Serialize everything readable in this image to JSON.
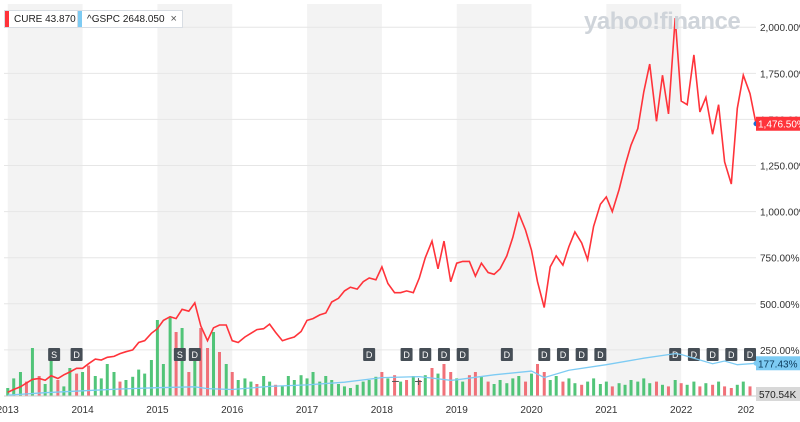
{
  "legend": {
    "cure": {
      "symbol": "CURE",
      "value": "43.870",
      "color": "#ff333a"
    },
    "gspc": {
      "symbol": "^GSPC",
      "value": "2648.050",
      "color": "#7dcbf3",
      "close": "×"
    }
  },
  "watermark": "yahoo!finance",
  "zoom": {
    "minus": "−",
    "plus": "+"
  },
  "chart_data": {
    "type": "line",
    "x_labels": [
      "2013",
      "2014",
      "2015",
      "2016",
      "2017",
      "2018",
      "2019",
      "2020",
      "2021",
      "2022",
      "202"
    ],
    "y_ticks": [
      "250.00%",
      "500.00%",
      "750.00%",
      "1,000.00%",
      "1,250.00%",
      "1,500.00%",
      "1,750.00%",
      "2,000.00%"
    ],
    "y_tick_values": [
      250,
      500,
      750,
      1000,
      1250,
      1500,
      1750,
      2000
    ],
    "ylim": [
      0,
      2050
    ],
    "xlim": [
      2012.95,
      2023.0
    ],
    "grid": true,
    "series": [
      {
        "name": "CURE",
        "color": "#ff333a",
        "last_label": "1,476.50%",
        "points": [
          [
            2013.0,
            20
          ],
          [
            2013.08,
            35
          ],
          [
            2013.17,
            50
          ],
          [
            2013.25,
            70
          ],
          [
            2013.33,
            90
          ],
          [
            2013.42,
            95
          ],
          [
            2013.5,
            85
          ],
          [
            2013.58,
            110
          ],
          [
            2013.67,
            95
          ],
          [
            2013.75,
            115
          ],
          [
            2013.83,
            130
          ],
          [
            2013.92,
            150
          ],
          [
            2014.0,
            150
          ],
          [
            2014.08,
            175
          ],
          [
            2014.17,
            200
          ],
          [
            2014.25,
            195
          ],
          [
            2014.33,
            210
          ],
          [
            2014.42,
            215
          ],
          [
            2014.5,
            230
          ],
          [
            2014.58,
            240
          ],
          [
            2014.67,
            250
          ],
          [
            2014.75,
            290
          ],
          [
            2014.83,
            300
          ],
          [
            2014.92,
            340
          ],
          [
            2015.0,
            365
          ],
          [
            2015.08,
            410
          ],
          [
            2015.17,
            430
          ],
          [
            2015.25,
            420
          ],
          [
            2015.33,
            470
          ],
          [
            2015.42,
            460
          ],
          [
            2015.5,
            505
          ],
          [
            2015.58,
            380
          ],
          [
            2015.67,
            300
          ],
          [
            2015.75,
            370
          ],
          [
            2015.83,
            385
          ],
          [
            2015.92,
            385
          ],
          [
            2016.0,
            300
          ],
          [
            2016.08,
            290
          ],
          [
            2016.17,
            320
          ],
          [
            2016.25,
            340
          ],
          [
            2016.33,
            360
          ],
          [
            2016.42,
            365
          ],
          [
            2016.5,
            390
          ],
          [
            2016.58,
            345
          ],
          [
            2016.67,
            300
          ],
          [
            2016.75,
            310
          ],
          [
            2016.83,
            320
          ],
          [
            2016.92,
            350
          ],
          [
            2017.0,
            410
          ],
          [
            2017.08,
            420
          ],
          [
            2017.17,
            440
          ],
          [
            2017.25,
            450
          ],
          [
            2017.33,
            510
          ],
          [
            2017.42,
            530
          ],
          [
            2017.5,
            570
          ],
          [
            2017.58,
            590
          ],
          [
            2017.67,
            580
          ],
          [
            2017.75,
            620
          ],
          [
            2017.83,
            640
          ],
          [
            2017.92,
            630
          ],
          [
            2018.0,
            700
          ],
          [
            2018.08,
            610
          ],
          [
            2018.17,
            560
          ],
          [
            2018.25,
            560
          ],
          [
            2018.33,
            570
          ],
          [
            2018.42,
            560
          ],
          [
            2018.5,
            640
          ],
          [
            2018.58,
            750
          ],
          [
            2018.67,
            840
          ],
          [
            2018.75,
            690
          ],
          [
            2018.83,
            840
          ],
          [
            2018.92,
            620
          ],
          [
            2019.0,
            720
          ],
          [
            2019.08,
            730
          ],
          [
            2019.17,
            730
          ],
          [
            2019.25,
            650
          ],
          [
            2019.33,
            720
          ],
          [
            2019.42,
            670
          ],
          [
            2019.5,
            660
          ],
          [
            2019.58,
            690
          ],
          [
            2019.67,
            760
          ],
          [
            2019.75,
            860
          ],
          [
            2019.83,
            990
          ],
          [
            2019.92,
            900
          ],
          [
            2020.0,
            790
          ],
          [
            2020.08,
            620
          ],
          [
            2020.17,
            480
          ],
          [
            2020.25,
            700
          ],
          [
            2020.33,
            760
          ],
          [
            2020.42,
            710
          ],
          [
            2020.5,
            810
          ],
          [
            2020.58,
            890
          ],
          [
            2020.67,
            830
          ],
          [
            2020.75,
            740
          ],
          [
            2020.83,
            920
          ],
          [
            2020.92,
            1040
          ],
          [
            2021.0,
            1080
          ],
          [
            2021.08,
            1000
          ],
          [
            2021.17,
            1120
          ],
          [
            2021.25,
            1250
          ],
          [
            2021.33,
            1360
          ],
          [
            2021.42,
            1450
          ],
          [
            2021.5,
            1650
          ],
          [
            2021.58,
            1800
          ],
          [
            2021.67,
            1490
          ],
          [
            2021.75,
            1740
          ],
          [
            2021.83,
            1530
          ],
          [
            2021.92,
            2050
          ],
          [
            2022.0,
            1600
          ],
          [
            2022.08,
            1580
          ],
          [
            2022.17,
            1850
          ],
          [
            2022.25,
            1540
          ],
          [
            2022.33,
            1620
          ],
          [
            2022.42,
            1420
          ],
          [
            2022.5,
            1580
          ],
          [
            2022.58,
            1270
          ],
          [
            2022.67,
            1150
          ],
          [
            2022.75,
            1560
          ],
          [
            2022.83,
            1740
          ],
          [
            2022.92,
            1640
          ],
          [
            2023.0,
            1476.5
          ]
        ]
      },
      {
        "name": "^GSPC",
        "color": "#7dcbf3",
        "last_label": "177.43%",
        "points": [
          [
            2013.0,
            5
          ],
          [
            2013.5,
            18
          ],
          [
            2014.0,
            28
          ],
          [
            2014.5,
            38
          ],
          [
            2015.0,
            45
          ],
          [
            2015.5,
            50
          ],
          [
            2015.67,
            40
          ],
          [
            2016.0,
            35
          ],
          [
            2016.5,
            52
          ],
          [
            2017.0,
            60
          ],
          [
            2017.5,
            75
          ],
          [
            2018.0,
            100
          ],
          [
            2018.5,
            105
          ],
          [
            2018.92,
            85
          ],
          [
            2019.0,
            88
          ],
          [
            2019.5,
            115
          ],
          [
            2020.0,
            135
          ],
          [
            2020.17,
            100
          ],
          [
            2020.5,
            140
          ],
          [
            2021.0,
            170
          ],
          [
            2021.5,
            205
          ],
          [
            2021.92,
            230
          ],
          [
            2022.0,
            225
          ],
          [
            2022.42,
            175
          ],
          [
            2022.58,
            190
          ],
          [
            2022.75,
            170
          ],
          [
            2023.0,
            177.43
          ]
        ]
      }
    ],
    "volume": {
      "last_label": "570.54K",
      "max": 100,
      "bars": [
        [
          2013.0,
          10,
          1
        ],
        [
          2013.08,
          22,
          1
        ],
        [
          2013.17,
          30,
          1
        ],
        [
          2013.25,
          18,
          0
        ],
        [
          2013.33,
          60,
          1
        ],
        [
          2013.42,
          25,
          0
        ],
        [
          2013.5,
          15,
          1
        ],
        [
          2013.58,
          45,
          1
        ],
        [
          2013.67,
          20,
          0
        ],
        [
          2013.75,
          12,
          1
        ],
        [
          2013.83,
          35,
          1
        ],
        [
          2013.92,
          28,
          0
        ],
        [
          2014.0,
          30,
          1
        ],
        [
          2014.08,
          38,
          0
        ],
        [
          2014.17,
          25,
          1
        ],
        [
          2014.25,
          22,
          1
        ],
        [
          2014.33,
          40,
          1
        ],
        [
          2014.42,
          30,
          1
        ],
        [
          2014.5,
          18,
          0
        ],
        [
          2014.58,
          20,
          1
        ],
        [
          2014.67,
          24,
          1
        ],
        [
          2014.75,
          33,
          1
        ],
        [
          2014.83,
          28,
          1
        ],
        [
          2014.92,
          45,
          1
        ],
        [
          2015.0,
          95,
          1
        ],
        [
          2015.08,
          40,
          1
        ],
        [
          2015.17,
          98,
          1
        ],
        [
          2015.25,
          80,
          0
        ],
        [
          2015.33,
          85,
          1
        ],
        [
          2015.42,
          30,
          0
        ],
        [
          2015.5,
          50,
          1
        ],
        [
          2015.58,
          85,
          0
        ],
        [
          2015.67,
          60,
          0
        ],
        [
          2015.75,
          80,
          1
        ],
        [
          2015.83,
          55,
          0
        ],
        [
          2015.92,
          40,
          1
        ],
        [
          2016.0,
          30,
          0
        ],
        [
          2016.08,
          20,
          1
        ],
        [
          2016.17,
          22,
          1
        ],
        [
          2016.25,
          18,
          1
        ],
        [
          2016.33,
          15,
          0
        ],
        [
          2016.42,
          25,
          1
        ],
        [
          2016.5,
          18,
          1
        ],
        [
          2016.58,
          14,
          0
        ],
        [
          2016.67,
          12,
          1
        ],
        [
          2016.75,
          25,
          1
        ],
        [
          2016.83,
          20,
          1
        ],
        [
          2016.92,
          26,
          1
        ],
        [
          2017.0,
          22,
          1
        ],
        [
          2017.08,
          30,
          1
        ],
        [
          2017.17,
          18,
          1
        ],
        [
          2017.25,
          25,
          1
        ],
        [
          2017.33,
          20,
          1
        ],
        [
          2017.42,
          15,
          1
        ],
        [
          2017.5,
          12,
          1
        ],
        [
          2017.58,
          10,
          1
        ],
        [
          2017.67,
          14,
          1
        ],
        [
          2017.75,
          18,
          1
        ],
        [
          2017.83,
          20,
          1
        ],
        [
          2017.92,
          24,
          1
        ],
        [
          2018.0,
          30,
          0
        ],
        [
          2018.08,
          22,
          1
        ],
        [
          2018.17,
          26,
          0
        ],
        [
          2018.25,
          18,
          1
        ],
        [
          2018.33,
          20,
          0
        ],
        [
          2018.42,
          25,
          1
        ],
        [
          2018.5,
          20,
          0
        ],
        [
          2018.58,
          26,
          1
        ],
        [
          2018.67,
          35,
          0
        ],
        [
          2018.75,
          28,
          1
        ],
        [
          2018.83,
          40,
          0
        ],
        [
          2018.92,
          30,
          0
        ],
        [
          2019.0,
          22,
          1
        ],
        [
          2019.08,
          18,
          1
        ],
        [
          2019.17,
          26,
          0
        ],
        [
          2019.25,
          30,
          0
        ],
        [
          2019.33,
          24,
          1
        ],
        [
          2019.42,
          18,
          0
        ],
        [
          2019.5,
          15,
          1
        ],
        [
          2019.58,
          20,
          1
        ],
        [
          2019.67,
          16,
          1
        ],
        [
          2019.75,
          22,
          1
        ],
        [
          2019.83,
          25,
          1
        ],
        [
          2019.92,
          18,
          0
        ],
        [
          2020.0,
          28,
          1
        ],
        [
          2020.08,
          40,
          0
        ],
        [
          2020.17,
          30,
          0
        ],
        [
          2020.25,
          20,
          1
        ],
        [
          2020.33,
          25,
          1
        ],
        [
          2020.42,
          18,
          0
        ],
        [
          2020.5,
          22,
          1
        ],
        [
          2020.58,
          16,
          1
        ],
        [
          2020.67,
          14,
          0
        ],
        [
          2020.75,
          18,
          1
        ],
        [
          2020.83,
          22,
          1
        ],
        [
          2020.92,
          15,
          1
        ],
        [
          2021.0,
          18,
          1
        ],
        [
          2021.08,
          12,
          0
        ],
        [
          2021.17,
          16,
          1
        ],
        [
          2021.25,
          14,
          1
        ],
        [
          2021.33,
          20,
          1
        ],
        [
          2021.42,
          18,
          1
        ],
        [
          2021.5,
          22,
          1
        ],
        [
          2021.58,
          16,
          1
        ],
        [
          2021.67,
          18,
          0
        ],
        [
          2021.75,
          14,
          1
        ],
        [
          2021.83,
          12,
          0
        ],
        [
          2021.92,
          20,
          1
        ],
        [
          2022.0,
          16,
          0
        ],
        [
          2022.08,
          14,
          1
        ],
        [
          2022.17,
          18,
          1
        ],
        [
          2022.25,
          12,
          0
        ],
        [
          2022.33,
          16,
          1
        ],
        [
          2022.42,
          14,
          0
        ],
        [
          2022.5,
          18,
          1
        ],
        [
          2022.58,
          12,
          0
        ],
        [
          2022.67,
          10,
          0
        ],
        [
          2022.75,
          14,
          1
        ],
        [
          2022.83,
          18,
          1
        ],
        [
          2022.92,
          12,
          0
        ]
      ]
    },
    "event_markers": [
      {
        "t": 2013.62,
        "label": "S"
      },
      {
        "t": 2013.92,
        "label": "D"
      },
      {
        "t": 2015.3,
        "label": "S"
      },
      {
        "t": 2015.5,
        "label": "D"
      },
      {
        "t": 2017.83,
        "label": "D"
      },
      {
        "t": 2018.33,
        "label": "D"
      },
      {
        "t": 2018.58,
        "label": "D"
      },
      {
        "t": 2018.83,
        "label": "D"
      },
      {
        "t": 2019.08,
        "label": "D"
      },
      {
        "t": 2019.67,
        "label": "D"
      },
      {
        "t": 2020.17,
        "label": "D"
      },
      {
        "t": 2020.42,
        "label": "D"
      },
      {
        "t": 2020.67,
        "label": "D"
      },
      {
        "t": 2020.92,
        "label": "D"
      },
      {
        "t": 2021.92,
        "label": "D"
      },
      {
        "t": 2022.17,
        "label": "D"
      },
      {
        "t": 2022.42,
        "label": "D"
      },
      {
        "t": 2022.67,
        "label": "D"
      },
      {
        "t": 2022.92,
        "label": "D"
      }
    ]
  }
}
